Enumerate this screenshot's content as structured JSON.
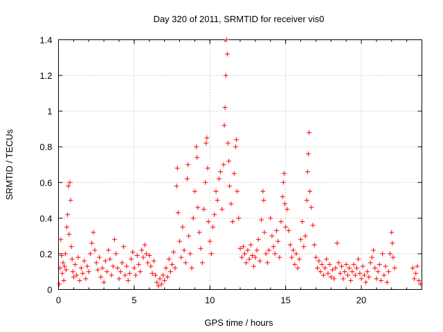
{
  "chart_data": {
    "type": "scatter",
    "title": "Day 320 of 2011, SRMTID for receiver vis0",
    "xlabel": "GPS time / hours",
    "ylabel": "SRMTID / TECUs",
    "xlim": [
      0,
      24
    ],
    "ylim": [
      0,
      1.4
    ],
    "xticks": [
      0,
      5,
      10,
      15,
      20
    ],
    "xtick_labels": [
      "0",
      "5",
      "10",
      "15",
      "20"
    ],
    "yticks": [
      0,
      0.2,
      0.4,
      0.6,
      0.8,
      1,
      1.2,
      1.4
    ],
    "ytick_labels": [
      "0",
      "0.2",
      "0.4",
      "0.6",
      "0.8",
      "1",
      "1.2",
      "1.4"
    ],
    "grid": true,
    "marker": "+",
    "color": "#ff0000",
    "points": [
      [
        0.05,
        0.03
      ],
      [
        0.1,
        0.12
      ],
      [
        0.15,
        0.28
      ],
      [
        0.2,
        0.19
      ],
      [
        0.25,
        0.09
      ],
      [
        0.3,
        0.15
      ],
      [
        0.35,
        0.05
      ],
      [
        0.4,
        0.13
      ],
      [
        0.45,
        0.2
      ],
      [
        0.5,
        0.11
      ],
      [
        0.55,
        0.35
      ],
      [
        0.6,
        0.42
      ],
      [
        0.65,
        0.58
      ],
      [
        0.7,
        0.31
      ],
      [
        0.75,
        0.6
      ],
      [
        0.8,
        0.5
      ],
      [
        0.85,
        0.24
      ],
      [
        0.9,
        0.17
      ],
      [
        0.95,
        0.1
      ],
      [
        1.0,
        0.07
      ],
      [
        1.1,
        0.14
      ],
      [
        1.2,
        0.08
      ],
      [
        1.3,
        0.18
      ],
      [
        1.4,
        0.05
      ],
      [
        1.5,
        0.12
      ],
      [
        1.6,
        0.09
      ],
      [
        1.7,
        0.16
      ],
      [
        1.8,
        0.06
      ],
      [
        1.9,
        0.13
      ],
      [
        2.0,
        0.1
      ],
      [
        2.1,
        0.2
      ],
      [
        2.2,
        0.26
      ],
      [
        2.3,
        0.32
      ],
      [
        2.4,
        0.22
      ],
      [
        2.5,
        0.15
      ],
      [
        2.6,
        0.11
      ],
      [
        2.7,
        0.18
      ],
      [
        2.8,
        0.07
      ],
      [
        2.9,
        0.12
      ],
      [
        3.0,
        0.04
      ],
      [
        3.1,
        0.16
      ],
      [
        3.2,
        0.1
      ],
      [
        3.3,
        0.22
      ],
      [
        3.4,
        0.17
      ],
      [
        3.5,
        0.08
      ],
      [
        3.6,
        0.13
      ],
      [
        3.7,
        0.28
      ],
      [
        3.8,
        0.2
      ],
      [
        3.9,
        0.12
      ],
      [
        4.0,
        0.06
      ],
      [
        4.1,
        0.1
      ],
      [
        4.2,
        0.15
      ],
      [
        4.3,
        0.24
      ],
      [
        4.4,
        0.08
      ],
      [
        4.5,
        0.13
      ],
      [
        4.6,
        0.05
      ],
      [
        4.7,
        0.09
      ],
      [
        4.8,
        0.17
      ],
      [
        4.9,
        0.21
      ],
      [
        5.0,
        0.12
      ],
      [
        5.1,
        0.08
      ],
      [
        5.2,
        0.19
      ],
      [
        5.3,
        0.14
      ],
      [
        5.4,
        0.1
      ],
      [
        5.5,
        0.22
      ],
      [
        5.6,
        0.18
      ],
      [
        5.7,
        0.25
      ],
      [
        5.8,
        0.2
      ],
      [
        5.9,
        0.15
      ],
      [
        6.0,
        0.19
      ],
      [
        6.1,
        0.13
      ],
      [
        6.2,
        0.09
      ],
      [
        6.3,
        0.16
      ],
      [
        6.4,
        0.08
      ],
      [
        6.5,
        0.04
      ],
      [
        6.6,
        0.02
      ],
      [
        6.7,
        0.06
      ],
      [
        6.8,
        0.03
      ],
      [
        6.9,
        0.08
      ],
      [
        7.0,
        0.05
      ],
      [
        7.1,
        0.12
      ],
      [
        7.2,
        0.07
      ],
      [
        7.3,
        0.17
      ],
      [
        7.4,
        0.1
      ],
      [
        7.5,
        0.14
      ],
      [
        7.6,
        0.21
      ],
      [
        7.7,
        0.12
      ],
      [
        7.8,
        0.58
      ],
      [
        7.85,
        0.68
      ],
      [
        7.9,
        0.43
      ],
      [
        8.0,
        0.27
      ],
      [
        8.1,
        0.18
      ],
      [
        8.2,
        0.35
      ],
      [
        8.3,
        0.22
      ],
      [
        8.4,
        0.15
      ],
      [
        8.5,
        0.62
      ],
      [
        8.55,
        0.7
      ],
      [
        8.6,
        0.3
      ],
      [
        8.7,
        0.2
      ],
      [
        8.8,
        0.12
      ],
      [
        8.9,
        0.4
      ],
      [
        9.0,
        0.55
      ],
      [
        9.1,
        0.8
      ],
      [
        9.15,
        0.74
      ],
      [
        9.2,
        0.46
      ],
      [
        9.3,
        0.32
      ],
      [
        9.4,
        0.23
      ],
      [
        9.5,
        0.15
      ],
      [
        9.6,
        0.45
      ],
      [
        9.7,
        0.6
      ],
      [
        9.75,
        0.82
      ],
      [
        9.8,
        0.85
      ],
      [
        9.85,
        0.68
      ],
      [
        9.9,
        0.38
      ],
      [
        10.0,
        0.27
      ],
      [
        10.1,
        0.2
      ],
      [
        10.2,
        0.35
      ],
      [
        10.3,
        0.42
      ],
      [
        10.4,
        0.55
      ],
      [
        10.5,
        0.5
      ],
      [
        10.6,
        0.62
      ],
      [
        10.7,
        0.66
      ],
      [
        10.8,
        0.45
      ],
      [
        10.9,
        0.7
      ],
      [
        10.95,
        0.92
      ],
      [
        11.0,
        1.02
      ],
      [
        11.05,
        1.2
      ],
      [
        11.1,
        1.4
      ],
      [
        11.15,
        1.32
      ],
      [
        11.2,
        0.82
      ],
      [
        11.25,
        0.72
      ],
      [
        11.3,
        0.58
      ],
      [
        11.4,
        0.48
      ],
      [
        11.5,
        0.38
      ],
      [
        11.6,
        0.65
      ],
      [
        11.7,
        0.8
      ],
      [
        11.75,
        0.84
      ],
      [
        11.8,
        0.55
      ],
      [
        11.9,
        0.4
      ],
      [
        12.0,
        0.23
      ],
      [
        12.1,
        0.18
      ],
      [
        12.2,
        0.24
      ],
      [
        12.3,
        0.2
      ],
      [
        12.4,
        0.15
      ],
      [
        12.5,
        0.22
      ],
      [
        12.6,
        0.17
      ],
      [
        12.7,
        0.25
      ],
      [
        12.8,
        0.19
      ],
      [
        12.9,
        0.13
      ],
      [
        13.0,
        0.18
      ],
      [
        13.1,
        0.22
      ],
      [
        13.2,
        0.28
      ],
      [
        13.3,
        0.16
      ],
      [
        13.4,
        0.39
      ],
      [
        13.5,
        0.55
      ],
      [
        13.55,
        0.5
      ],
      [
        13.6,
        0.32
      ],
      [
        13.7,
        0.2
      ],
      [
        13.8,
        0.15
      ],
      [
        13.9,
        0.22
      ],
      [
        14.0,
        0.4
      ],
      [
        14.1,
        0.3
      ],
      [
        14.2,
        0.24
      ],
      [
        14.3,
        0.2
      ],
      [
        14.4,
        0.33
      ],
      [
        14.5,
        0.27
      ],
      [
        14.6,
        0.18
      ],
      [
        14.7,
        0.38
      ],
      [
        14.8,
        0.52
      ],
      [
        14.85,
        0.6
      ],
      [
        14.9,
        0.65
      ],
      [
        14.95,
        0.48
      ],
      [
        15.0,
        0.35
      ],
      [
        15.1,
        0.45
      ],
      [
        15.2,
        0.33
      ],
      [
        15.3,
        0.25
      ],
      [
        15.4,
        0.18
      ],
      [
        15.5,
        0.22
      ],
      [
        15.6,
        0.14
      ],
      [
        15.7,
        0.2
      ],
      [
        15.8,
        0.12
      ],
      [
        15.9,
        0.17
      ],
      [
        16.0,
        0.28
      ],
      [
        16.1,
        0.38
      ],
      [
        16.2,
        0.24
      ],
      [
        16.3,
        0.3
      ],
      [
        16.4,
        0.5
      ],
      [
        16.45,
        0.66
      ],
      [
        16.5,
        0.76
      ],
      [
        16.55,
        0.88
      ],
      [
        16.6,
        0.55
      ],
      [
        16.7,
        0.46
      ],
      [
        16.8,
        0.36
      ],
      [
        16.9,
        0.25
      ],
      [
        17.0,
        0.18
      ],
      [
        17.1,
        0.12
      ],
      [
        17.2,
        0.16
      ],
      [
        17.3,
        0.1
      ],
      [
        17.4,
        0.14
      ],
      [
        17.5,
        0.08
      ],
      [
        17.6,
        0.12
      ],
      [
        17.7,
        0.17
      ],
      [
        17.8,
        0.09
      ],
      [
        17.9,
        0.14
      ],
      [
        18.0,
        0.07
      ],
      [
        18.1,
        0.11
      ],
      [
        18.2,
        0.06
      ],
      [
        18.3,
        0.12
      ],
      [
        18.4,
        0.26
      ],
      [
        18.5,
        0.15
      ],
      [
        18.6,
        0.09
      ],
      [
        18.7,
        0.13
      ],
      [
        18.8,
        0.06
      ],
      [
        18.9,
        0.1
      ],
      [
        19.0,
        0.14
      ],
      [
        19.1,
        0.08
      ],
      [
        19.2,
        0.12
      ],
      [
        19.3,
        0.05
      ],
      [
        19.4,
        0.1
      ],
      [
        19.5,
        0.14
      ],
      [
        19.6,
        0.08
      ],
      [
        19.7,
        0.12
      ],
      [
        19.8,
        0.17
      ],
      [
        19.9,
        0.09
      ],
      [
        20.0,
        0.06
      ],
      [
        20.1,
        0.13
      ],
      [
        20.2,
        0.08
      ],
      [
        20.3,
        0.04
      ],
      [
        20.4,
        0.1
      ],
      [
        20.5,
        0.07
      ],
      [
        20.6,
        0.15
      ],
      [
        20.7,
        0.18
      ],
      [
        20.8,
        0.22
      ],
      [
        20.9,
        0.12
      ],
      [
        21.0,
        0.06
      ],
      [
        21.1,
        0.1
      ],
      [
        21.2,
        0.14
      ],
      [
        21.3,
        0.05
      ],
      [
        21.4,
        0.2
      ],
      [
        21.5,
        0.08
      ],
      [
        21.6,
        0.13
      ],
      [
        21.7,
        0.04
      ],
      [
        21.8,
        0.1
      ],
      [
        21.9,
        0.2
      ],
      [
        22.0,
        0.32
      ],
      [
        22.05,
        0.26
      ],
      [
        22.1,
        0.18
      ],
      [
        22.2,
        0.12
      ],
      [
        23.4,
        0.12
      ],
      [
        23.5,
        0.06
      ],
      [
        23.6,
        0.09
      ],
      [
        23.7,
        0.13
      ],
      [
        23.8,
        0.05
      ],
      [
        23.9,
        0.03
      ]
    ]
  }
}
